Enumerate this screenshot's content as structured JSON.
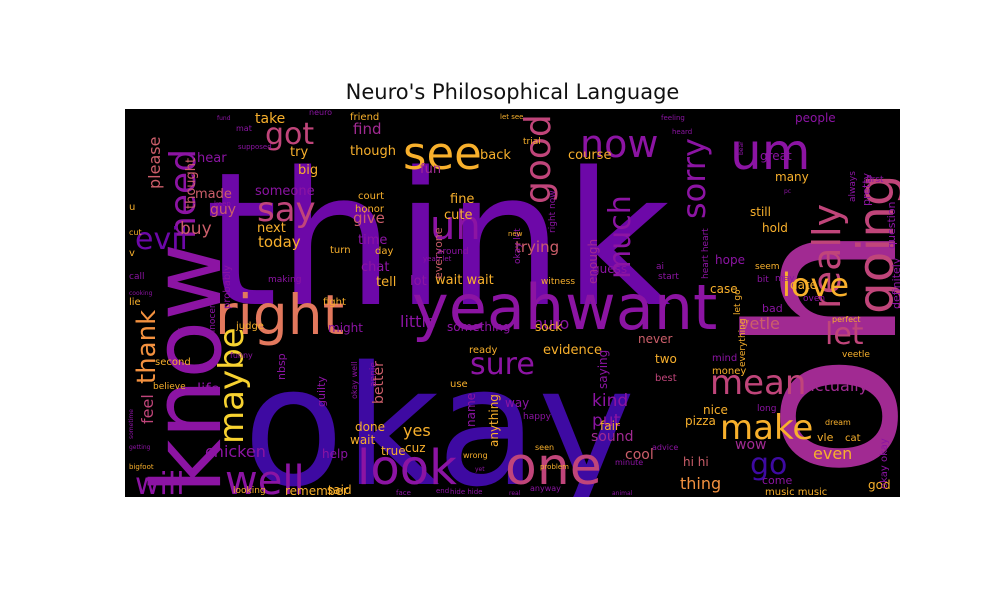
{
  "chart_data": {
    "type": "wordcloud",
    "title": "Neuro's Philosophical Language",
    "background": "#000000",
    "palette": "plasma",
    "colors": {
      "indigo": "#3e0aa2",
      "purple": "#6d08a8",
      "violet": "#8c14a3",
      "magenta": "#a12a92",
      "pink": "#c0457a",
      "rose": "#cc5e6a",
      "salmon": "#e2785d",
      "orange": "#f3913f",
      "amber": "#f8b02c",
      "yellow": "#f7d230"
    },
    "words": [
      {
        "text": "think",
        "weight": 1.0,
        "color": "purple"
      },
      {
        "text": "okay",
        "weight": 0.97,
        "color": "indigo"
      },
      {
        "text": "oh",
        "weight": 0.8,
        "color": "magenta"
      },
      {
        "text": "know",
        "weight": 0.55,
        "color": "violet"
      },
      {
        "text": "yeah",
        "weight": 0.5,
        "color": "violet"
      },
      {
        "text": "want",
        "weight": 0.5,
        "color": "violet"
      },
      {
        "text": "right",
        "weight": 0.42,
        "color": "salmon"
      },
      {
        "text": "one",
        "weight": 0.38,
        "color": "pink"
      },
      {
        "text": "look",
        "weight": 0.36,
        "color": "violet"
      },
      {
        "text": "going",
        "weight": 0.34,
        "color": "pink"
      },
      {
        "text": "um",
        "weight": 0.3,
        "color": "violet"
      },
      {
        "text": "see",
        "weight": 0.3,
        "color": "amber"
      },
      {
        "text": "well",
        "weight": 0.28,
        "color": "violet"
      },
      {
        "text": "now",
        "weight": 0.27,
        "color": "violet"
      },
      {
        "text": "good",
        "weight": 0.27,
        "color": "pink"
      },
      {
        "text": "uh",
        "weight": 0.27,
        "color": "violet"
      },
      {
        "text": "maybe",
        "weight": 0.25,
        "color": "yellow"
      },
      {
        "text": "really",
        "weight": 0.25,
        "color": "pink"
      },
      {
        "text": "need",
        "weight": 0.24,
        "color": "violet"
      },
      {
        "text": "say",
        "weight": 0.24,
        "color": "pink"
      },
      {
        "text": "evil",
        "weight": 0.22,
        "color": "purple"
      },
      {
        "text": "will",
        "weight": 0.22,
        "color": "violet"
      },
      {
        "text": "make",
        "weight": 0.22,
        "color": "amber"
      },
      {
        "text": "mean",
        "weight": 0.22,
        "color": "pink"
      },
      {
        "text": "sorry",
        "weight": 0.22,
        "color": "violet"
      },
      {
        "text": "much",
        "weight": 0.21,
        "color": "violet"
      },
      {
        "text": "thank",
        "weight": 0.21,
        "color": "orange"
      },
      {
        "text": "love",
        "weight": 0.2,
        "color": "amber"
      },
      {
        "text": "go",
        "weight": 0.2,
        "color": "indigo"
      },
      {
        "text": "got",
        "weight": 0.2,
        "color": "pink"
      },
      {
        "text": "let",
        "weight": 0.18,
        "color": "pink"
      },
      {
        "text": "sure",
        "weight": 0.18,
        "color": "violet"
      },
      {
        "text": "buy",
        "weight": 0.1,
        "color": "rose"
      },
      {
        "text": "please",
        "weight": 0.09,
        "color": "rose"
      },
      {
        "text": "kind",
        "weight": 0.09,
        "color": "violet"
      },
      {
        "text": "put",
        "weight": 0.09,
        "color": "violet"
      },
      {
        "text": "chicken",
        "weight": 0.09,
        "color": "violet"
      },
      {
        "text": "feel",
        "weight": 0.09,
        "color": "pink"
      },
      {
        "text": "actually",
        "weight": 0.09,
        "color": "magenta"
      },
      {
        "text": "vetle",
        "weight": 0.09,
        "color": "rose"
      },
      {
        "text": "little",
        "weight": 0.08,
        "color": "violet"
      },
      {
        "text": "find",
        "weight": 0.08,
        "color": "magenta"
      },
      {
        "text": "today",
        "weight": 0.08,
        "color": "amber"
      },
      {
        "text": "give",
        "weight": 0.08,
        "color": "rose"
      },
      {
        "text": "better",
        "weight": 0.08,
        "color": "rose"
      },
      {
        "text": "yes",
        "weight": 0.08,
        "color": "amber"
      },
      {
        "text": "life",
        "weight": 0.08,
        "color": "violet"
      },
      {
        "text": "thing",
        "weight": 0.08,
        "color": "orange"
      },
      {
        "text": "even",
        "weight": 0.08,
        "color": "amber"
      },
      {
        "text": "nuro",
        "weight": 0.08,
        "color": "violet"
      },
      {
        "text": "trying",
        "weight": 0.08,
        "color": "rose"
      },
      {
        "text": "sound",
        "weight": 0.08,
        "color": "magenta"
      },
      {
        "text": "cool",
        "weight": 0.08,
        "color": "rose"
      },
      {
        "text": "wow",
        "weight": 0.07,
        "color": "magenta"
      },
      {
        "text": "take",
        "weight": 0.07,
        "color": "amber"
      },
      {
        "text": "guy",
        "weight": 0.07,
        "color": "rose"
      },
      {
        "text": "thought",
        "weight": 0.07,
        "color": "rose"
      },
      {
        "text": "made",
        "weight": 0.07,
        "color": "rose"
      },
      {
        "text": "hear",
        "weight": 0.07,
        "color": "violet"
      },
      {
        "text": "try",
        "weight": 0.07,
        "color": "amber"
      },
      {
        "text": "big",
        "weight": 0.07,
        "color": "amber"
      },
      {
        "text": "someone",
        "weight": 0.07,
        "color": "violet"
      },
      {
        "text": "next",
        "weight": 0.07,
        "color": "amber"
      },
      {
        "text": "time",
        "weight": 0.07,
        "color": "violet"
      },
      {
        "text": "though",
        "weight": 0.07,
        "color": "amber"
      },
      {
        "text": "fine",
        "weight": 0.07,
        "color": "amber"
      },
      {
        "text": "cute",
        "weight": 0.07,
        "color": "amber"
      },
      {
        "text": "fun",
        "weight": 0.07,
        "color": "magenta"
      },
      {
        "text": "back",
        "weight": 0.07,
        "color": "amber"
      },
      {
        "text": "evidence",
        "weight": 0.07,
        "color": "amber"
      },
      {
        "text": "course",
        "weight": 0.07,
        "color": "amber"
      },
      {
        "text": "chat",
        "weight": 0.07,
        "color": "violet"
      },
      {
        "text": "tell",
        "weight": 0.07,
        "color": "amber"
      },
      {
        "text": "lot",
        "weight": 0.07,
        "color": "violet"
      },
      {
        "text": "wait wait",
        "weight": 0.07,
        "color": "amber"
      },
      {
        "text": "people",
        "weight": 0.07,
        "color": "violet"
      },
      {
        "text": "great",
        "weight": 0.07,
        "color": "violet"
      },
      {
        "text": "many",
        "weight": 0.07,
        "color": "amber"
      },
      {
        "text": "still",
        "weight": 0.07,
        "color": "amber"
      },
      {
        "text": "hold",
        "weight": 0.07,
        "color": "amber"
      },
      {
        "text": "hope",
        "weight": 0.06,
        "color": "violet"
      },
      {
        "text": "case",
        "weight": 0.06,
        "color": "amber"
      },
      {
        "text": "date",
        "weight": 0.06,
        "color": "amber"
      },
      {
        "text": "something",
        "weight": 0.06,
        "color": "violet"
      },
      {
        "text": "sock",
        "weight": 0.06,
        "color": "amber"
      },
      {
        "text": "might",
        "weight": 0.06,
        "color": "violet"
      },
      {
        "text": "wait",
        "weight": 0.06,
        "color": "amber"
      },
      {
        "text": "help",
        "weight": 0.06,
        "color": "violet"
      },
      {
        "text": "said",
        "weight": 0.06,
        "color": "amber"
      },
      {
        "text": "remember",
        "weight": 0.06,
        "color": "amber"
      },
      {
        "text": "done",
        "weight": 0.06,
        "color": "amber"
      },
      {
        "text": "cuz",
        "weight": 0.06,
        "color": "amber"
      },
      {
        "text": "true",
        "weight": 0.06,
        "color": "amber"
      },
      {
        "text": "way",
        "weight": 0.06,
        "color": "violet"
      },
      {
        "text": "fair",
        "weight": 0.06,
        "color": "amber"
      },
      {
        "text": "pizza",
        "weight": 0.06,
        "color": "amber"
      },
      {
        "text": "hi hi",
        "weight": 0.06,
        "color": "rose"
      },
      {
        "text": "nice",
        "weight": 0.06,
        "color": "amber"
      },
      {
        "text": "two",
        "weight": 0.06,
        "color": "amber"
      },
      {
        "text": "never",
        "weight": 0.06,
        "color": "rose"
      },
      {
        "text": "guess",
        "weight": 0.06,
        "color": "violet"
      },
      {
        "text": "enough",
        "weight": 0.06,
        "color": "magenta"
      },
      {
        "text": "saying",
        "weight": 0.06,
        "color": "violet"
      },
      {
        "text": "name",
        "weight": 0.06,
        "color": "violet"
      },
      {
        "text": "anything",
        "weight": 0.06,
        "color": "amber"
      },
      {
        "text": "everyone",
        "weight": 0.06,
        "color": "rose"
      },
      {
        "text": "question",
        "weight": 0.06,
        "color": "violet"
      },
      {
        "text": "definitely",
        "weight": 0.06,
        "color": "violet"
      },
      {
        "text": "pretty",
        "weight": 0.06,
        "color": "violet"
      },
      {
        "text": "nbsp",
        "weight": 0.06,
        "color": "violet"
      },
      {
        "text": "guilty",
        "weight": 0.06,
        "color": "violet"
      },
      {
        "text": "probably",
        "weight": 0.06,
        "color": "violet"
      },
      {
        "text": "god",
        "weight": 0.06,
        "color": "amber"
      },
      {
        "text": "come",
        "weight": 0.06,
        "color": "violet"
      },
      {
        "text": "music music",
        "weight": 0.06,
        "color": "amber"
      },
      {
        "text": "vle",
        "weight": 0.06,
        "color": "amber"
      },
      {
        "text": "cat",
        "weight": 0.05,
        "color": "amber"
      },
      {
        "text": "okay okay",
        "weight": 0.05,
        "color": "violet"
      },
      {
        "text": "first",
        "weight": 0.05,
        "color": "violet"
      },
      {
        "text": "always",
        "weight": 0.05,
        "color": "violet"
      },
      {
        "text": "bad",
        "weight": 0.05,
        "color": "violet"
      },
      {
        "text": "mind",
        "weight": 0.05,
        "color": "violet"
      },
      {
        "text": "money",
        "weight": 0.05,
        "color": "amber"
      },
      {
        "text": "best",
        "weight": 0.05,
        "color": "pink"
      },
      {
        "text": "ready",
        "weight": 0.05,
        "color": "amber"
      },
      {
        "text": "use",
        "weight": 0.05,
        "color": "amber"
      },
      {
        "text": "court",
        "weight": 0.05,
        "color": "amber"
      },
      {
        "text": "honor",
        "weight": 0.05,
        "color": "amber"
      },
      {
        "text": "friend",
        "weight": 0.05,
        "color": "amber"
      },
      {
        "text": "day",
        "weight": 0.05,
        "color": "amber"
      },
      {
        "text": "turn",
        "weight": 0.05,
        "color": "amber"
      },
      {
        "text": "fight",
        "weight": 0.05,
        "color": "amber"
      },
      {
        "text": "judge",
        "weight": 0.05,
        "color": "amber"
      },
      {
        "text": "second",
        "weight": 0.05,
        "color": "amber"
      },
      {
        "text": "lie",
        "weight": 0.05,
        "color": "amber"
      },
      {
        "text": "v",
        "weight": 0.05,
        "color": "amber"
      },
      {
        "text": "u",
        "weight": 0.05,
        "color": "amber"
      },
      {
        "text": "believe",
        "weight": 0.05,
        "color": "amber"
      },
      {
        "text": "witness",
        "weight": 0.05,
        "color": "amber"
      },
      {
        "text": "around",
        "weight": 0.05,
        "color": "violet"
      },
      {
        "text": "trial",
        "weight": 0.05,
        "color": "amber"
      },
      {
        "text": "happy",
        "weight": 0.05,
        "color": "violet"
      },
      {
        "text": "start",
        "weight": 0.05,
        "color": "violet"
      },
      {
        "text": "bit",
        "weight": 0.05,
        "color": "violet"
      },
      {
        "text": "oven",
        "weight": 0.05,
        "color": "violet"
      },
      {
        "text": "veetle",
        "weight": 0.05,
        "color": "amber"
      },
      {
        "text": "okay let",
        "weight": 0.05,
        "color": "violet"
      },
      {
        "text": "right now",
        "weight": 0.05,
        "color": "violet"
      },
      {
        "text": "innocent",
        "weight": 0.04,
        "color": "violet"
      },
      {
        "text": "making",
        "weight": 0.04,
        "color": "violet"
      },
      {
        "text": "looking",
        "weight": 0.04,
        "color": "amber"
      },
      {
        "text": "long",
        "weight": 0.04,
        "color": "violet"
      },
      {
        "text": "everything",
        "weight": 0.04,
        "color": "amber"
      },
      {
        "text": "let go",
        "weight": 0.04,
        "color": "amber"
      },
      {
        "text": "heart heart",
        "weight": 0.04,
        "color": "violet"
      },
      {
        "text": "seem",
        "weight": 0.04,
        "color": "amber"
      },
      {
        "text": "may",
        "weight": 0.04,
        "color": "violet"
      },
      {
        "text": "ai",
        "weight": 0.04,
        "color": "violet"
      },
      {
        "text": "wrong",
        "weight": 0.04,
        "color": "amber"
      },
      {
        "text": "seen",
        "weight": 0.04,
        "color": "amber"
      },
      {
        "text": "advice",
        "weight": 0.04,
        "color": "violet"
      },
      {
        "text": "minute",
        "weight": 0.04,
        "color": "violet"
      },
      {
        "text": "perfect",
        "weight": 0.04,
        "color": "amber"
      },
      {
        "text": "dream",
        "weight": 0.04,
        "color": "amber"
      },
      {
        "text": "funny",
        "weight": 0.04,
        "color": "violet"
      },
      {
        "text": "okay well",
        "weight": 0.04,
        "color": "violet"
      },
      {
        "text": "annie",
        "weight": 0.04,
        "color": "violet"
      },
      {
        "text": "call",
        "weight": 0.04,
        "color": "violet"
      },
      {
        "text": "cut",
        "weight": 0.04,
        "color": "amber"
      },
      {
        "text": "keep",
        "weight": 0.04,
        "color": "violet"
      },
      {
        "text": "mat",
        "weight": 0.04,
        "color": "violet"
      },
      {
        "text": "supposed",
        "weight": 0.04,
        "color": "violet"
      },
      {
        "text": "neuro",
        "weight": 0.04,
        "color": "violet"
      },
      {
        "text": "let see",
        "weight": 0.04,
        "color": "amber"
      },
      {
        "text": "feeling",
        "weight": 0.04,
        "color": "violet"
      },
      {
        "text": "heard",
        "weight": 0.04,
        "color": "violet"
      },
      {
        "text": "yeah let",
        "weight": 0.04,
        "color": "violet"
      },
      {
        "text": "new",
        "weight": 0.04,
        "color": "amber"
      },
      {
        "text": "problem",
        "weight": 0.04,
        "color": "amber"
      },
      {
        "text": "sometime",
        "weight": 0.03,
        "color": "violet"
      },
      {
        "text": "getting",
        "weight": 0.03,
        "color": "violet"
      },
      {
        "text": "bigfoot",
        "weight": 0.03,
        "color": "amber"
      },
      {
        "text": "cooking",
        "weight": 0.03,
        "color": "violet"
      },
      {
        "text": "face",
        "weight": 0.03,
        "color": "violet"
      },
      {
        "text": "end",
        "weight": 0.03,
        "color": "violet"
      },
      {
        "text": "hide hide",
        "weight": 0.03,
        "color": "violet"
      },
      {
        "text": "anyway",
        "weight": 0.03,
        "color": "violet"
      },
      {
        "text": "animal",
        "weight": 0.03,
        "color": "violet"
      },
      {
        "text": "h",
        "weight": 0.03,
        "color": "violet"
      },
      {
        "text": "pc",
        "weight": 0.03,
        "color": "violet"
      },
      {
        "text": "bear",
        "weight": 0.03,
        "color": "violet"
      },
      {
        "text": "fund",
        "weight": 0.03,
        "color": "violet"
      },
      {
        "text": "yet",
        "weight": 0.03,
        "color": "violet"
      },
      {
        "text": "real",
        "weight": 0.03,
        "color": "violet"
      }
    ]
  }
}
